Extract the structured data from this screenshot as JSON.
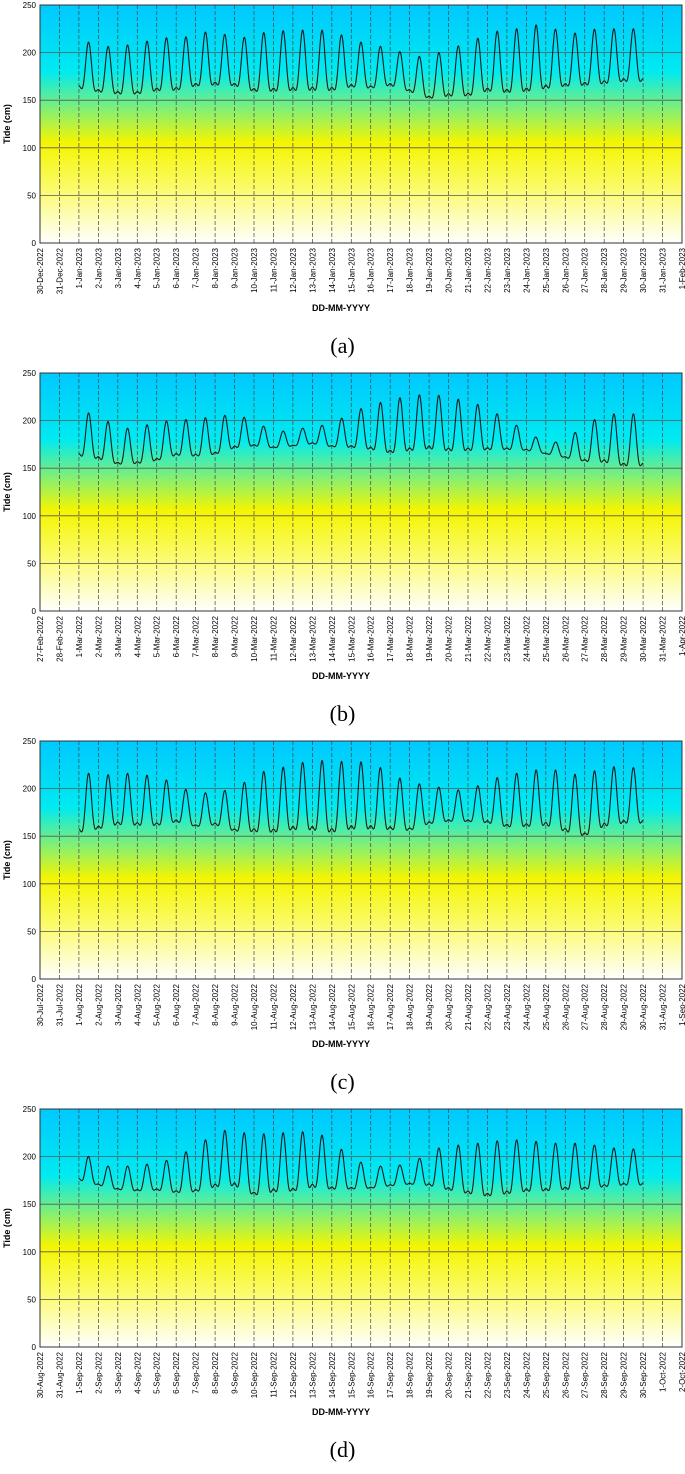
{
  "chart_data": [
    {
      "type": "line",
      "panel_label": "(a)",
      "xlabel": "DD-MM-YYYY",
      "ylabel": "Tide (cm)",
      "ylim": [
        0,
        250
      ],
      "yticks": [
        0,
        50,
        100,
        150,
        200,
        250
      ],
      "grid": true,
      "categories": [
        "30-Dec-2022",
        "31-Dec-2022",
        "1-Jan-2023",
        "2-Jan-2023",
        "3-Jan-2023",
        "4-Jan-2023",
        "5-Jan-2023",
        "6-Jan-2023",
        "7-Jan-2023",
        "8-Jan-2023",
        "9-Jan-2023",
        "10-Jan-2023",
        "11-Jan-2023",
        "12-Jan-2023",
        "13-Jan-2023",
        "14-Jan-2023",
        "15-Jan-2023",
        "16-Jan-2023",
        "17-Jan-2023",
        "18-Jan-2023",
        "19-Jan-2023",
        "20-Jan-2023",
        "21-Jan-2023",
        "22-Jan-2023",
        "23-Jan-2023",
        "24-Jan-2023",
        "25-Jan-2023",
        "26-Jan-2023",
        "27-Jan-2023",
        "28-Jan-2023",
        "29-Jan-2023",
        "30-Jan-2023",
        "31-Jan-2023",
        "1-Feb-2023"
      ],
      "series": [
        {
          "start": 2.0,
          "end": 31.0,
          "daily_high": [
            217,
            205,
            208,
            208,
            216,
            215,
            218,
            225,
            213,
            219,
            223,
            223,
            224,
            223,
            214,
            208,
            205,
            197,
            195,
            205,
            209,
            221,
            224,
            226,
            232,
            217,
            224,
            225,
            225
          ],
          "daily_low": [
            145,
            144,
            140,
            140,
            142,
            143,
            148,
            147,
            150,
            140,
            139,
            140,
            140,
            140,
            148,
            148,
            153,
            147,
            138,
            138,
            137,
            140,
            137,
            138,
            140,
            148,
            147,
            149,
            152
          ]
        }
      ]
    },
    {
      "type": "line",
      "panel_label": "(b)",
      "xlabel": "DD-MM-YYYY",
      "ylabel": "Tide (cm)",
      "ylim": [
        0,
        250
      ],
      "yticks": [
        0,
        50,
        100,
        150,
        200,
        250
      ],
      "grid": true,
      "categories": [
        "27-Feb-2022",
        "28-Feb-2022",
        "1-Mar-2022",
        "2-Mar-2022",
        "3-Mar-2022",
        "4-Mar-2022",
        "5-Mar-2022",
        "6-Mar-2022",
        "7-Mar-2022",
        "8-Mar-2022",
        "9-Mar-2022",
        "10-Mar-2022",
        "11-Mar-2022",
        "12-Mar-2022",
        "13-Mar-2022",
        "14-Mar-2022",
        "15-Mar-2022",
        "16-Mar-2022",
        "17-Mar-2022",
        "18-Mar-2022",
        "19-Mar-2022",
        "20-Mar-2022",
        "21-Mar-2022",
        "22-Mar-2022",
        "23-Mar-2022",
        "24-Mar-2022",
        "25-Mar-2022",
        "26-Mar-2022",
        "27-Mar-2022",
        "28-Mar-2022",
        "29-Mar-2022",
        "30-Mar-2022",
        "31-Mar-2022",
        "1-Apr-2022"
      ],
      "series": [
        {
          "start": 2.0,
          "end": 31.0,
          "daily_high": [
            210,
            206,
            192,
            192,
            199,
            200,
            202,
            204,
            207,
            200,
            188,
            190,
            194,
            196,
            209,
            216,
            222,
            226,
            228,
            225,
            220,
            214,
            200,
            190,
            175,
            180,
            195,
            207,
            207
          ],
          "daily_low": [
            148,
            145,
            142,
            143,
            145,
            152,
            150,
            152,
            160,
            165,
            166,
            168,
            170,
            165,
            160,
            155,
            148,
            150,
            152,
            150,
            152,
            155,
            160,
            162,
            162,
            155,
            145,
            140,
            135
          ]
        }
      ]
    },
    {
      "type": "line",
      "panel_label": "(c)",
      "xlabel": "DD-MM-YYYY",
      "ylabel": "Tide (cm)",
      "ylim": [
        0,
        250
      ],
      "yticks": [
        0,
        50,
        100,
        150,
        200,
        250
      ],
      "grid": true,
      "categories": [
        "30-Jul-2022",
        "31-Jul-2022",
        "1-Aug-2022",
        "2-Aug-2022",
        "3-Aug-2022",
        "4-Aug-2022",
        "5-Aug-2022",
        "6-Aug-2022",
        "7-Aug-2022",
        "8-Aug-2022",
        "9-Aug-2022",
        "10-Aug-2022",
        "11-Aug-2022",
        "12-Aug-2022",
        "13-Aug-2022",
        "14-Aug-2022",
        "15-Aug-2022",
        "16-Aug-2022",
        "17-Aug-2022",
        "18-Aug-2022",
        "19-Aug-2022",
        "20-Aug-2022",
        "21-Aug-2022",
        "22-Aug-2022",
        "23-Aug-2022",
        "24-Aug-2022",
        "25-Aug-2022",
        "26-Aug-2022",
        "27-Aug-2022",
        "28-Aug-2022",
        "29-Aug-2022",
        "30-Aug-2022",
        "31-Aug-2022",
        "1-Sep-2022"
      ],
      "series": [
        {
          "start": 2.0,
          "end": 31.0,
          "daily_high": [
            219,
            213,
            216,
            216,
            212,
            206,
            192,
            199,
            197,
            216,
            220,
            225,
            230,
            229,
            228,
            228,
            216,
            206,
            204,
            199,
            198,
            208,
            215,
            217,
            222,
            217,
            213,
            224,
            222
          ],
          "daily_low": [
            133,
            140,
            145,
            144,
            145,
            152,
            150,
            150,
            142,
            135,
            133,
            135,
            133,
            130,
            135,
            135,
            138,
            140,
            150,
            155,
            155,
            150,
            142,
            142,
            142,
            135,
            130,
            140,
            145
          ]
        }
      ]
    },
    {
      "type": "line",
      "panel_label": "(d)",
      "xlabel": "DD-MM-YYYY",
      "ylabel": "Tide (cm)",
      "ylim": [
        0,
        250
      ],
      "yticks": [
        0,
        50,
        100,
        150,
        200,
        250
      ],
      "grid": true,
      "categories": [
        "30-Aug-2022",
        "31-Aug-2022",
        "1-Sep-2022",
        "2-Sep-2022",
        "3-Sep-2022",
        "4-Sep-2022",
        "5-Sep-2022",
        "6-Sep-2022",
        "7-Sep-2022",
        "8-Sep-2022",
        "9-Sep-2022",
        "10-Sep-2022",
        "11-Sep-2022",
        "12-Sep-2022",
        "13-Sep-2022",
        "14-Sep-2022",
        "15-Sep-2022",
        "16-Sep-2022",
        "17-Sep-2022",
        "18-Sep-2022",
        "19-Sep-2022",
        "20-Sep-2022",
        "21-Sep-2022",
        "22-Sep-2022",
        "23-Sep-2022",
        "24-Sep-2022",
        "25-Sep-2022",
        "26-Sep-2022",
        "27-Sep-2022",
        "28-Sep-2022",
        "29-Sep-2022",
        "30-Sep-2022",
        "1-Oct-2022",
        "2-Oct-2022"
      ],
      "series": [
        {
          "start": 2.0,
          "end": 31.0,
          "daily_high": [
            208,
            192,
            188,
            192,
            192,
            200,
            210,
            225,
            230,
            220,
            228,
            222,
            230,
            215,
            200,
            188,
            192,
            190,
            206,
            212,
            212,
            216,
            217,
            218,
            214,
            214,
            214,
            210,
            208
          ],
          "daily_low": [
            165,
            163,
            158,
            155,
            156,
            150,
            148,
            150,
            150,
            140,
            142,
            145,
            148,
            150,
            155,
            160,
            162,
            165,
            158,
            150,
            145,
            140,
            143,
            146,
            148,
            150,
            150,
            155,
            158
          ]
        }
      ]
    }
  ]
}
